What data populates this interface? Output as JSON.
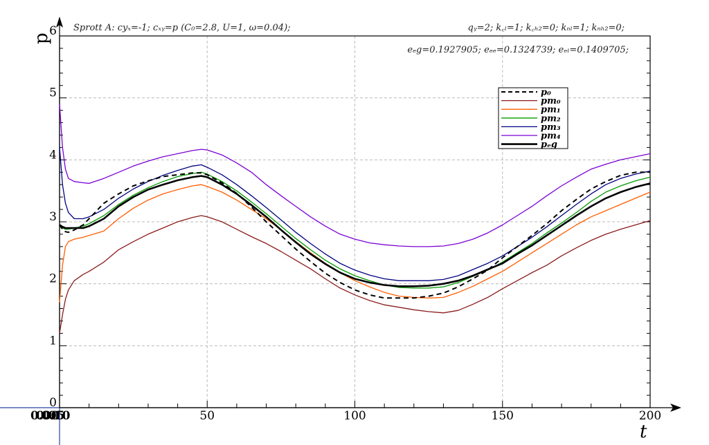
{
  "chart_data": {
    "type": "line",
    "title_left": "Sprott A: cyₓ=-1; cₓᵧ=p (C₀=2.8, U=1, ω=0.04);",
    "title_right": "qᵧ=2; k꜀ₗ=1; k꜀ₕ₂=0; kₙₗ=1; kₙₕ₂=0;",
    "subtitle": "eₑg=0.1927905; eₑₑ=0.1324739; eₑₗ=0.1409705;",
    "xlabel": "t",
    "ylabel": "p",
    "xlim": [
      0,
      200
    ],
    "ylim": [
      0,
      6
    ],
    "x_ticks": [
      "0",
      "50",
      "100",
      "150",
      "200"
    ],
    "x_origin_overlap_labels": [
      "0.00",
      "0.05",
      "0.10"
    ],
    "y_ticks": [
      "0",
      "1",
      "2",
      "3",
      "4",
      "5",
      "6"
    ],
    "grid": true,
    "legend_position": "top-right",
    "x": [
      0,
      1,
      2,
      3,
      5,
      8,
      10,
      15,
      20,
      25,
      30,
      35,
      40,
      45,
      48,
      50,
      55,
      60,
      65,
      70,
      75,
      80,
      85,
      90,
      95,
      100,
      105,
      110,
      115,
      120,
      125,
      130,
      135,
      140,
      145,
      150,
      155,
      160,
      165,
      170,
      175,
      180,
      185,
      190,
      195,
      200
    ],
    "series": [
      {
        "name": "p₀",
        "color": "#000000",
        "style": "dashed",
        "width": 2,
        "values": [
          2.95,
          2.88,
          2.84,
          2.83,
          2.87,
          2.95,
          3.05,
          3.3,
          3.45,
          3.58,
          3.66,
          3.73,
          3.76,
          3.79,
          3.79,
          3.76,
          3.63,
          3.46,
          3.24,
          3.0,
          2.78,
          2.56,
          2.36,
          2.17,
          2.02,
          1.9,
          1.82,
          1.77,
          1.77,
          1.77,
          1.8,
          1.85,
          1.95,
          2.08,
          2.22,
          2.42,
          2.6,
          2.78,
          2.97,
          3.18,
          3.36,
          3.53,
          3.65,
          3.75,
          3.8,
          3.8
        ]
      },
      {
        "name": "pm₀",
        "color": "#8b1a1a",
        "style": "solid",
        "width": 1.3,
        "values": [
          1.2,
          1.5,
          1.75,
          1.9,
          2.05,
          2.15,
          2.2,
          2.35,
          2.55,
          2.68,
          2.8,
          2.9,
          3.0,
          3.07,
          3.1,
          3.08,
          3.0,
          2.88,
          2.76,
          2.65,
          2.52,
          2.38,
          2.24,
          2.08,
          1.93,
          1.82,
          1.73,
          1.66,
          1.62,
          1.58,
          1.55,
          1.53,
          1.57,
          1.67,
          1.78,
          1.92,
          2.05,
          2.18,
          2.3,
          2.45,
          2.58,
          2.7,
          2.8,
          2.88,
          2.95,
          3.02
        ]
      },
      {
        "name": "pm₁",
        "color": "#ff5c00",
        "style": "solid",
        "width": 1.3,
        "values": [
          1.7,
          2.3,
          2.6,
          2.68,
          2.72,
          2.75,
          2.78,
          2.85,
          3.05,
          3.22,
          3.35,
          3.45,
          3.52,
          3.58,
          3.6,
          3.57,
          3.48,
          3.35,
          3.2,
          3.05,
          2.87,
          2.68,
          2.5,
          2.33,
          2.18,
          2.05,
          1.95,
          1.86,
          1.8,
          1.78,
          1.77,
          1.78,
          1.86,
          1.96,
          2.08,
          2.2,
          2.35,
          2.5,
          2.65,
          2.8,
          2.95,
          3.08,
          3.18,
          3.28,
          3.38,
          3.48
        ]
      },
      {
        "name": "pm₂",
        "color": "#009900",
        "style": "solid",
        "width": 1.3,
        "values": [
          2.95,
          2.9,
          2.88,
          2.88,
          2.9,
          2.93,
          2.97,
          3.1,
          3.28,
          3.43,
          3.55,
          3.65,
          3.73,
          3.78,
          3.8,
          3.77,
          3.65,
          3.5,
          3.32,
          3.13,
          2.93,
          2.73,
          2.55,
          2.38,
          2.24,
          2.13,
          2.05,
          1.98,
          1.94,
          1.93,
          1.93,
          1.95,
          2.02,
          2.12,
          2.22,
          2.35,
          2.5,
          2.65,
          2.82,
          2.98,
          3.15,
          3.33,
          3.48,
          3.58,
          3.66,
          3.72
        ]
      },
      {
        "name": "pm₃",
        "color": "#000080",
        "style": "solid",
        "width": 1.3,
        "values": [
          4.2,
          3.6,
          3.3,
          3.15,
          3.05,
          3.05,
          3.08,
          3.2,
          3.38,
          3.53,
          3.65,
          3.75,
          3.83,
          3.9,
          3.92,
          3.88,
          3.76,
          3.6,
          3.42,
          3.23,
          3.03,
          2.83,
          2.65,
          2.48,
          2.33,
          2.22,
          2.14,
          2.08,
          2.05,
          2.05,
          2.05,
          2.07,
          2.13,
          2.23,
          2.33,
          2.45,
          2.6,
          2.75,
          2.92,
          3.1,
          3.28,
          3.45,
          3.6,
          3.7,
          3.77,
          3.82
        ]
      },
      {
        "name": "pm₄",
        "color": "#7b00d4",
        "style": "solid",
        "width": 1.3,
        "values": [
          4.9,
          4.2,
          3.85,
          3.7,
          3.65,
          3.63,
          3.62,
          3.7,
          3.8,
          3.9,
          3.98,
          4.05,
          4.1,
          4.15,
          4.17,
          4.16,
          4.08,
          3.95,
          3.8,
          3.6,
          3.42,
          3.25,
          3.08,
          2.93,
          2.8,
          2.72,
          2.66,
          2.63,
          2.61,
          2.6,
          2.6,
          2.61,
          2.65,
          2.72,
          2.82,
          2.95,
          3.1,
          3.25,
          3.42,
          3.58,
          3.72,
          3.85,
          3.93,
          4.0,
          4.05,
          4.1
        ]
      },
      {
        "name": "pₑg",
        "color": "#000000",
        "style": "solid",
        "width": 2.6,
        "values": [
          2.95,
          2.92,
          2.9,
          2.9,
          2.9,
          2.9,
          2.93,
          3.05,
          3.25,
          3.4,
          3.52,
          3.6,
          3.67,
          3.72,
          3.74,
          3.72,
          3.6,
          3.45,
          3.27,
          3.08,
          2.87,
          2.67,
          2.48,
          2.32,
          2.18,
          2.08,
          2.02,
          1.98,
          1.96,
          1.96,
          1.97,
          2.0,
          2.05,
          2.13,
          2.23,
          2.33,
          2.48,
          2.62,
          2.78,
          2.94,
          3.1,
          3.25,
          3.38,
          3.48,
          3.56,
          3.62
        ]
      }
    ]
  }
}
